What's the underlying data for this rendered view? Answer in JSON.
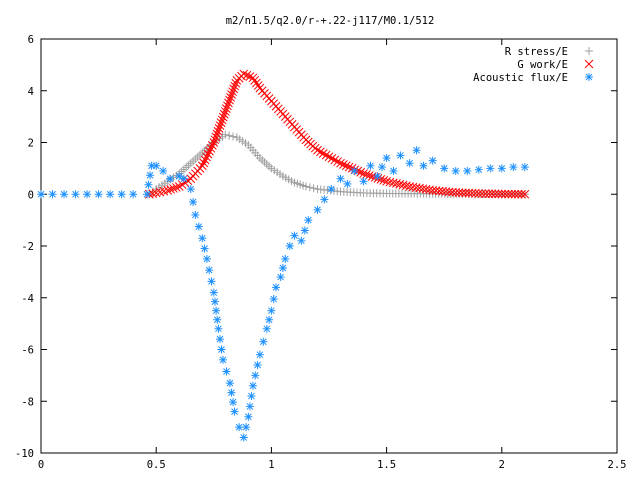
{
  "chart_data": {
    "type": "scatter",
    "title": "m2/n1.5/q2.0/r-+.22-j117/M0.1/512",
    "xlabel": "",
    "ylabel": "",
    "xlim": [
      0,
      2.5
    ],
    "ylim": [
      -10,
      6
    ],
    "x_ticks": [
      "0",
      "0.5",
      "1",
      "1.5",
      "2",
      "2.5"
    ],
    "y_ticks": [
      "-10",
      "-8",
      "-6",
      "-4",
      "-2",
      "0",
      "2",
      "4",
      "6"
    ],
    "grid": false,
    "legend_position": "top-right",
    "series": [
      {
        "name": "R stress/E",
        "marker": "+",
        "color": "#a0a0a0",
        "points": [
          [
            0.47,
            0.0
          ],
          [
            0.5,
            0.2
          ],
          [
            0.55,
            0.5
          ],
          [
            0.6,
            0.8
          ],
          [
            0.65,
            1.2
          ],
          [
            0.7,
            1.6
          ],
          [
            0.75,
            2.0
          ],
          [
            0.8,
            2.3
          ],
          [
            0.85,
            2.2
          ],
          [
            0.9,
            1.9
          ],
          [
            0.95,
            1.4
          ],
          [
            1.0,
            1.0
          ],
          [
            1.05,
            0.7
          ],
          [
            1.1,
            0.45
          ],
          [
            1.15,
            0.3
          ],
          [
            1.2,
            0.2
          ],
          [
            1.3,
            0.1
          ],
          [
            1.4,
            0.05
          ],
          [
            1.5,
            0.03
          ],
          [
            1.7,
            0.02
          ],
          [
            2.0,
            0.0
          ],
          [
            2.1,
            0.0
          ]
        ]
      },
      {
        "name": "G work/E",
        "marker": "x",
        "color": "#ff0000",
        "points": [
          [
            0.47,
            0.0
          ],
          [
            0.5,
            0.05
          ],
          [
            0.55,
            0.15
          ],
          [
            0.6,
            0.3
          ],
          [
            0.65,
            0.6
          ],
          [
            0.7,
            1.1
          ],
          [
            0.75,
            2.0
          ],
          [
            0.8,
            3.2
          ],
          [
            0.85,
            4.4
          ],
          [
            0.88,
            4.65
          ],
          [
            0.92,
            4.5
          ],
          [
            0.95,
            4.1
          ],
          [
            1.0,
            3.6
          ],
          [
            1.05,
            3.1
          ],
          [
            1.1,
            2.6
          ],
          [
            1.15,
            2.1
          ],
          [
            1.2,
            1.7
          ],
          [
            1.3,
            1.2
          ],
          [
            1.4,
            0.8
          ],
          [
            1.5,
            0.5
          ],
          [
            1.6,
            0.3
          ],
          [
            1.7,
            0.15
          ],
          [
            1.8,
            0.07
          ],
          [
            1.9,
            0.03
          ],
          [
            2.0,
            0.01
          ],
          [
            2.1,
            0.0
          ]
        ]
      },
      {
        "name": "Acoustic flux/E",
        "marker": "*",
        "color": "#1e90ff",
        "points": [
          [
            0.0,
            0.0
          ],
          [
            0.1,
            0.0
          ],
          [
            0.2,
            0.0
          ],
          [
            0.3,
            0.0
          ],
          [
            0.4,
            0.0
          ],
          [
            0.46,
            0.0
          ],
          [
            0.48,
            1.1
          ],
          [
            0.5,
            1.1
          ],
          [
            0.53,
            0.9
          ],
          [
            0.56,
            0.6
          ],
          [
            0.6,
            0.7
          ],
          [
            0.62,
            0.6
          ],
          [
            0.65,
            0.2
          ],
          [
            0.67,
            -0.8
          ],
          [
            0.7,
            -1.7
          ],
          [
            0.72,
            -2.5
          ],
          [
            0.75,
            -3.8
          ],
          [
            0.77,
            -5.2
          ],
          [
            0.79,
            -6.4
          ],
          [
            0.82,
            -7.3
          ],
          [
            0.84,
            -8.4
          ],
          [
            0.86,
            -9.0
          ],
          [
            0.88,
            -9.4
          ],
          [
            0.9,
            -8.6
          ],
          [
            0.92,
            -7.4
          ],
          [
            0.95,
            -6.2
          ],
          [
            0.98,
            -5.2
          ],
          [
            1.0,
            -4.5
          ],
          [
            1.02,
            -3.6
          ],
          [
            1.04,
            -3.2
          ],
          [
            1.06,
            -2.5
          ],
          [
            1.08,
            -2.0
          ],
          [
            1.1,
            -1.6
          ],
          [
            1.13,
            -1.8
          ],
          [
            1.16,
            -1.0
          ],
          [
            1.2,
            -0.6
          ],
          [
            1.23,
            -0.2
          ],
          [
            1.26,
            0.2
          ],
          [
            1.3,
            0.6
          ],
          [
            1.33,
            0.4
          ],
          [
            1.36,
            0.9
          ],
          [
            1.4,
            0.5
          ],
          [
            1.43,
            1.1
          ],
          [
            1.46,
            0.7
          ],
          [
            1.5,
            1.4
          ],
          [
            1.53,
            0.9
          ],
          [
            1.56,
            1.5
          ],
          [
            1.6,
            1.2
          ],
          [
            1.63,
            1.7
          ],
          [
            1.66,
            1.1
          ],
          [
            1.7,
            1.3
          ],
          [
            1.75,
            1.0
          ],
          [
            1.8,
            0.9
          ],
          [
            1.85,
            0.9
          ],
          [
            1.9,
            0.95
          ],
          [
            1.95,
            1.0
          ],
          [
            2.0,
            1.0
          ],
          [
            2.05,
            1.05
          ],
          [
            2.1,
            1.05
          ]
        ]
      }
    ]
  }
}
